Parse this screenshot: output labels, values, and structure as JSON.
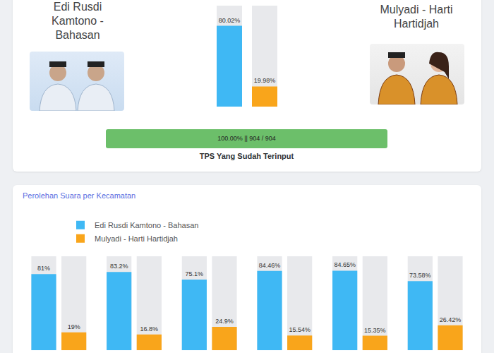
{
  "header": {
    "candidates": [
      {
        "name": "Edi Rusdi Kamtono - Bahasan"
      },
      {
        "name": "Mulyadi - Harti Hartidjah"
      }
    ]
  },
  "progress": {
    "label": "100.00% || 904 / 904",
    "caption": "TPS Yang Sudah Terinput",
    "done": 904,
    "total": 904
  },
  "chart_data": [
    {
      "type": "bar",
      "categories": [
        null,
        null
      ],
      "values": [
        80.02,
        19.98
      ],
      "value_labels": [
        "80.02%",
        "19.98%"
      ],
      "colors": [
        "#3fb8f4",
        "#f9a51b"
      ],
      "ylim": [
        0,
        100
      ],
      "data_labels": true,
      "tick_labels": false
    },
    {
      "type": "bar",
      "title": "Perolehan Suara per Kecamatan",
      "categories": [
        null,
        null,
        null,
        null,
        null,
        null
      ],
      "series": [
        {
          "name": "Edi Rusdi Kamtono - Bahasan",
          "color": "#3fb8f4",
          "values": [
            81,
            83.2,
            75.1,
            84.46,
            84.65,
            73.58
          ],
          "value_labels": [
            "81%",
            "83.2%",
            "75.1%",
            "84.46%",
            "84.65%",
            "73.58%"
          ]
        },
        {
          "name": "Mulyadi - Harti Hartidjah",
          "color": "#f9a51b",
          "values": [
            19,
            16.8,
            24.9,
            15.54,
            15.35,
            26.42
          ],
          "value_labels": [
            "19%",
            "16.8%",
            "24.9%",
            "15.54%",
            "15.35%",
            "26.42%"
          ]
        }
      ],
      "ylim": [
        0,
        100
      ],
      "data_labels": true,
      "tick_labels": false,
      "legend": "top"
    }
  ]
}
